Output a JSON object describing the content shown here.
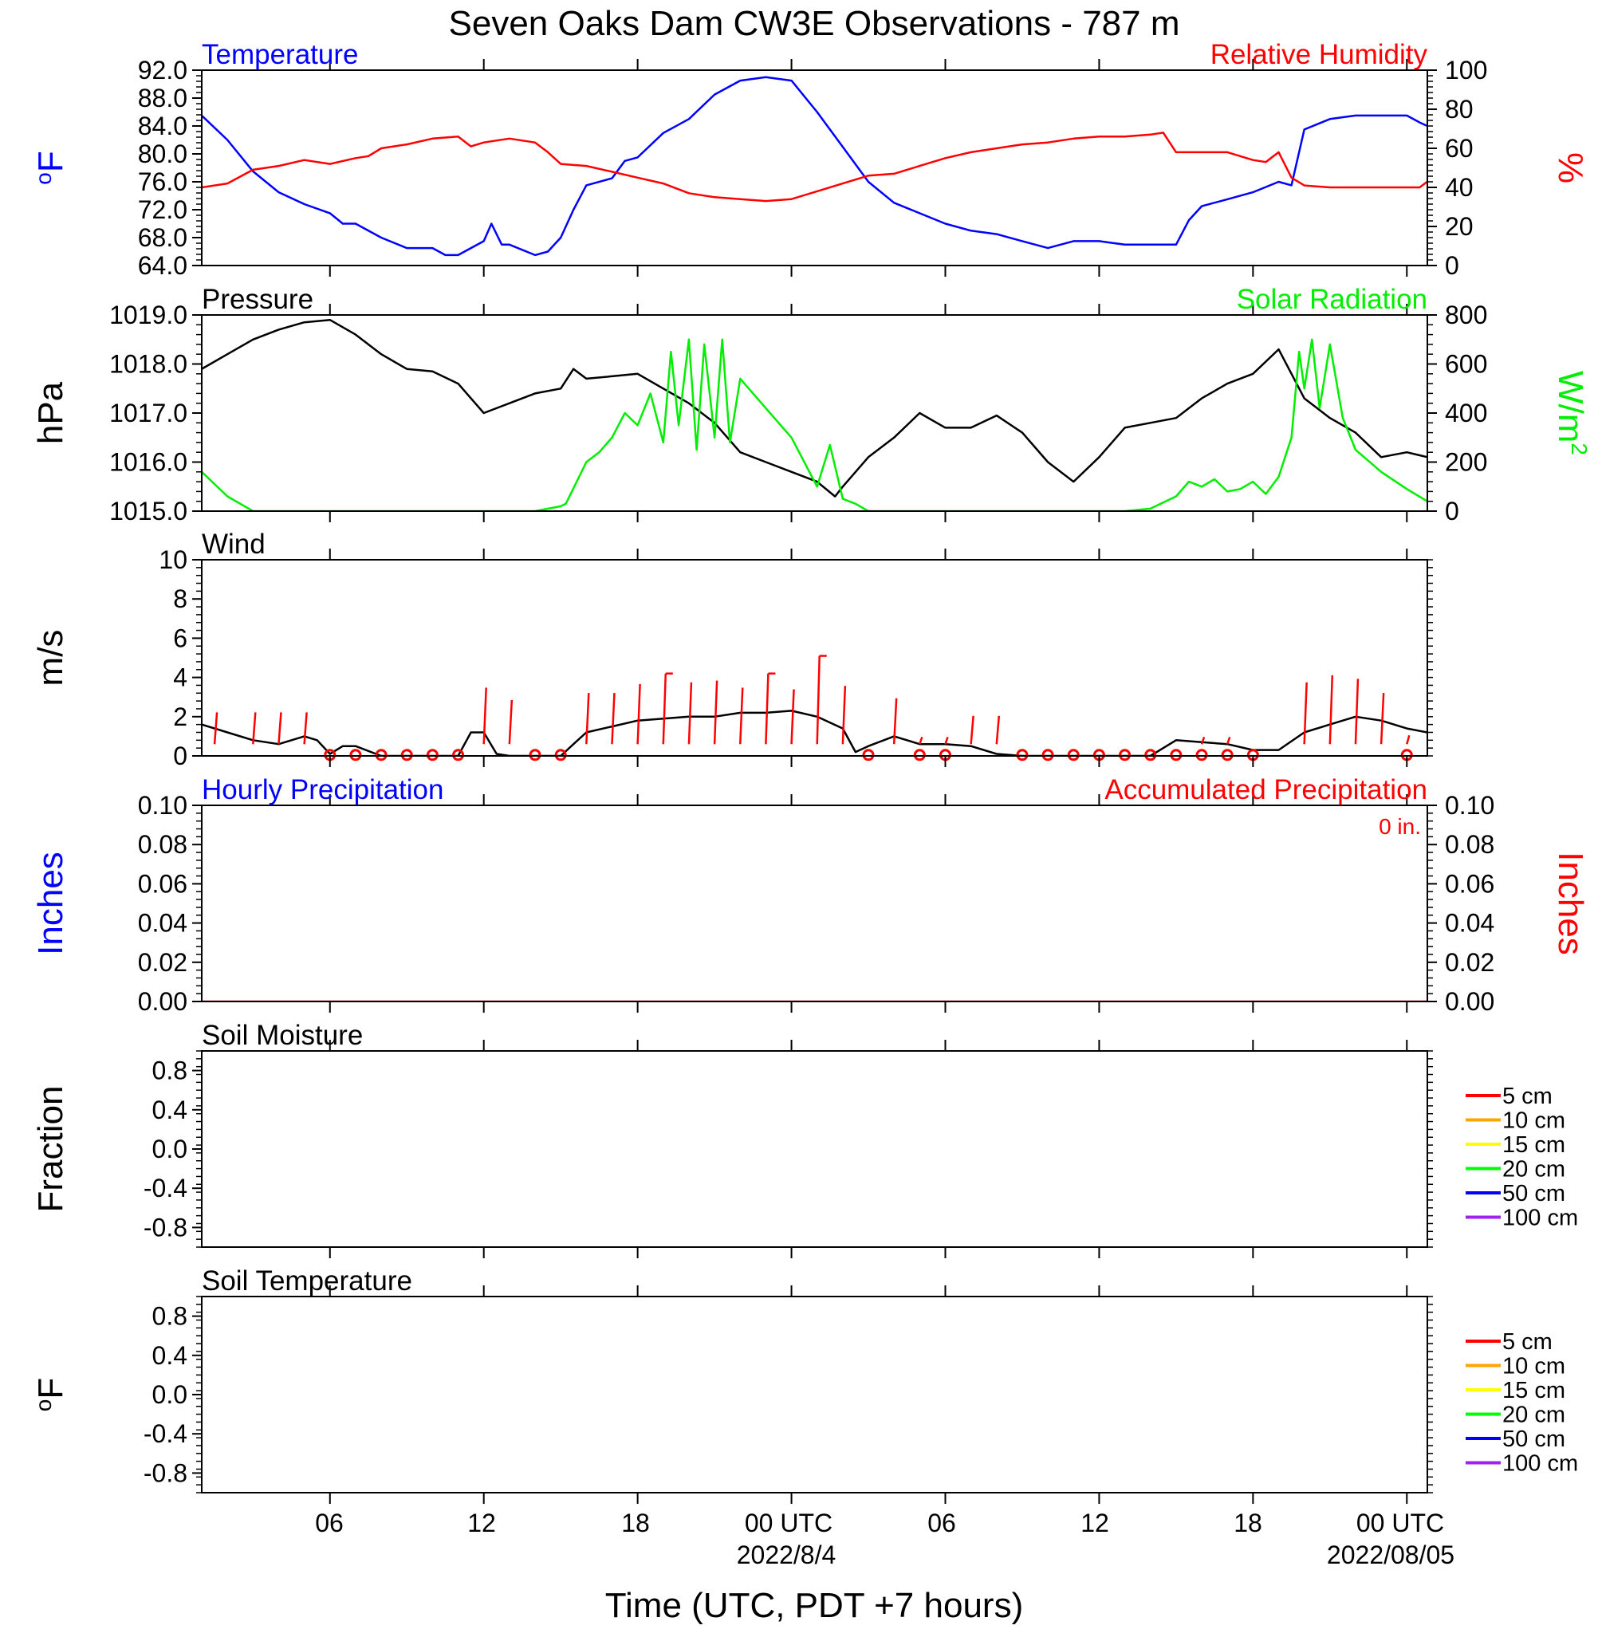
{
  "title": "Seven Oaks Dam CW3E Observations - 787 m",
  "xlabel": "Time (UTC, PDT +7 hours)",
  "x_ticks": [
    "06",
    "12",
    "18",
    "00 UTC",
    "06",
    "12",
    "18",
    "00 UTC"
  ],
  "date_labels": [
    "2022/8/4",
    "2022/08/05"
  ],
  "colors": {
    "blue": "#0000ff",
    "red": "#ff0000",
    "green": "#00ee00",
    "black": "#000000"
  },
  "chart_data": [
    {
      "type": "line",
      "title_left": "Temperature",
      "title_right": "Relative Humidity",
      "ylabel_left": "oF",
      "ylabel_right": "%",
      "ylim_left": [
        64,
        92
      ],
      "ylim_right": [
        0,
        100
      ],
      "yticks_left": [
        "92.0",
        "88.0",
        "84.0",
        "80.0",
        "76.0",
        "72.0",
        "68.0",
        "64.0"
      ],
      "yticks_right": [
        "100",
        "80",
        "60",
        "40",
        "20",
        "0"
      ],
      "xlim_hours": [
        1,
        48.8
      ],
      "series": [
        {
          "name": "Temperature",
          "axis": "left",
          "color": "#0000ff",
          "x": [
            1,
            2,
            3,
            4,
            5,
            6,
            6.5,
            7,
            8,
            9,
            10,
            10.5,
            11,
            11.5,
            12,
            12.3,
            12.7,
            13,
            14,
            14.5,
            15,
            15.5,
            16,
            17,
            17.5,
            18,
            19,
            20,
            21,
            22,
            23,
            24,
            25,
            26,
            27,
            28,
            29,
            30,
            31,
            32,
            33,
            34,
            35,
            35.5,
            36,
            37,
            38,
            39,
            39.5,
            40,
            41,
            42,
            43,
            43.5,
            44,
            45,
            46,
            47,
            48,
            48.5,
            48.8
          ],
          "y": [
            85.5,
            82,
            77.5,
            74.5,
            72.8,
            71.5,
            70,
            70,
            68,
            66.5,
            66.5,
            65.5,
            65.5,
            66.5,
            67.5,
            70,
            67,
            67,
            65.5,
            66,
            68,
            72,
            75.5,
            76.5,
            79,
            79.5,
            83,
            85,
            88.5,
            90.5,
            91,
            90.5,
            86,
            81,
            76,
            73,
            71.5,
            70,
            69,
            68.5,
            67.5,
            66.5,
            67.5,
            67.5,
            67.5,
            67,
            67,
            67,
            70.5,
            72.5,
            73.5,
            74.5,
            76,
            75.5,
            83.5,
            85,
            85.5,
            85.5,
            85.5,
            84.5,
            84
          ]
        },
        {
          "name": "Relative Humidity",
          "axis": "right",
          "color": "#ff0000",
          "x": [
            1,
            2,
            3,
            4,
            5,
            6,
            7,
            7.5,
            8,
            9,
            10,
            11,
            11.5,
            12,
            12.5,
            13,
            14,
            14.5,
            15,
            16,
            17,
            18,
            19,
            20,
            21,
            22,
            23,
            24,
            25,
            26,
            27,
            28,
            29,
            30,
            31,
            32,
            33,
            34,
            35,
            36,
            37,
            38,
            38.5,
            39,
            40,
            41,
            42,
            42.5,
            43,
            43.5,
            44,
            45,
            46,
            47,
            48,
            48.5,
            48.8
          ],
          "y": [
            40,
            42,
            49,
            51,
            54,
            52,
            55,
            56,
            60,
            62,
            65,
            66,
            61,
            63,
            64,
            65,
            63,
            58,
            52,
            51,
            48,
            45,
            42,
            37,
            35,
            34,
            33,
            34,
            38,
            42,
            46,
            47,
            51,
            55,
            58,
            60,
            62,
            63,
            65,
            66,
            66,
            67,
            68,
            58,
            58,
            58,
            54,
            53,
            58,
            45,
            41,
            40,
            40,
            40,
            40,
            40,
            43
          ]
        }
      ]
    },
    {
      "type": "line",
      "title_left": "Pressure",
      "title_right": "Solar Radiation",
      "ylabel_left": "hPa",
      "ylabel_right": "W/m2",
      "ylim_left": [
        1015,
        1019
      ],
      "ylim_right": [
        0,
        800
      ],
      "yticks_left": [
        "1019.0",
        "1018.0",
        "1017.0",
        "1016.0",
        "1015.0"
      ],
      "yticks_right": [
        "800",
        "600",
        "400",
        "200",
        "0"
      ],
      "series": [
        {
          "name": "Pressure",
          "axis": "left",
          "color": "#000000",
          "x": [
            1,
            2,
            3,
            4,
            5,
            6,
            7,
            8,
            9,
            10,
            11,
            12,
            13,
            14,
            15,
            15.5,
            16,
            17,
            18,
            19,
            20,
            21,
            22,
            23,
            24,
            25,
            25.7,
            26,
            27,
            28,
            29,
            30,
            31,
            32,
            33,
            34,
            35,
            36,
            37,
            38,
            39,
            40,
            41,
            42,
            43,
            43.5,
            44,
            45,
            46,
            47,
            48,
            48.8
          ],
          "y": [
            1017.9,
            1018.2,
            1018.5,
            1018.7,
            1018.85,
            1018.9,
            1018.6,
            1018.2,
            1017.9,
            1017.85,
            1017.6,
            1017.0,
            1017.2,
            1017.4,
            1017.5,
            1017.9,
            1017.7,
            1017.75,
            1017.8,
            1017.5,
            1017.2,
            1016.8,
            1016.2,
            1016.0,
            1015.8,
            1015.6,
            1015.3,
            1015.5,
            1016.1,
            1016.5,
            1017.0,
            1016.7,
            1016.7,
            1016.95,
            1016.6,
            1016.0,
            1015.6,
            1016.1,
            1016.7,
            1016.8,
            1016.9,
            1017.3,
            1017.6,
            1017.8,
            1018.3,
            1017.8,
            1017.3,
            1016.9,
            1016.6,
            1016.1,
            1016.2,
            1016.1
          ]
        },
        {
          "name": "Solar Radiation",
          "axis": "right",
          "color": "#00ee00",
          "x": [
            1,
            2,
            3,
            4,
            5,
            6,
            7,
            8,
            9,
            10,
            11,
            12,
            13,
            14,
            15,
            15.2,
            16,
            16.5,
            17,
            17.5,
            18,
            18.5,
            19,
            19.3,
            19.6,
            20,
            20.3,
            20.6,
            21,
            21.3,
            21.6,
            22,
            23,
            24,
            25,
            25.5,
            26,
            26.5,
            27,
            28,
            29,
            30,
            31,
            32,
            33,
            34,
            35,
            36,
            37,
            38,
            39,
            39.5,
            40,
            40.5,
            41,
            41.5,
            42,
            42.5,
            43,
            43.5,
            43.8,
            44,
            44.3,
            44.6,
            45,
            45.5,
            46,
            47,
            48,
            48.8
          ],
          "y": [
            160,
            60,
            0,
            0,
            0,
            0,
            0,
            0,
            0,
            0,
            0,
            0,
            0,
            0,
            20,
            30,
            200,
            240,
            300,
            400,
            350,
            480,
            280,
            650,
            350,
            700,
            250,
            680,
            300,
            700,
            280,
            540,
            420,
            300,
            100,
            270,
            50,
            30,
            0,
            0,
            0,
            0,
            0,
            0,
            0,
            0,
            0,
            0,
            0,
            10,
            60,
            120,
            100,
            130,
            80,
            90,
            120,
            70,
            140,
            300,
            650,
            500,
            700,
            420,
            680,
            380,
            250,
            160,
            90,
            40
          ]
        }
      ]
    },
    {
      "type": "line",
      "title_left": "Wind",
      "ylabel_left": "m/s",
      "ylim_left": [
        0,
        10
      ],
      "yticks_left": [
        "10",
        "8",
        "6",
        "4",
        "2",
        "0"
      ],
      "series": [
        {
          "name": "Wind",
          "axis": "left",
          "color": "#000000",
          "x": [
            1,
            2,
            3,
            4,
            5,
            5.5,
            6,
            6.5,
            7,
            8,
            9,
            10,
            11,
            11.5,
            12,
            12.5,
            13,
            14,
            15,
            15.5,
            16,
            17,
            18,
            19,
            20,
            21,
            22,
            23,
            24,
            25,
            26,
            26.5,
            27,
            28,
            29,
            30,
            31,
            32,
            33,
            34,
            35,
            36,
            37,
            38,
            39,
            40,
            41,
            42,
            43,
            44,
            45,
            46,
            47,
            48,
            48.8
          ],
          "y": [
            1.6,
            1.2,
            0.8,
            0.6,
            1.0,
            0.8,
            0.1,
            0.5,
            0.5,
            0,
            0,
            0,
            0,
            1.2,
            1.2,
            0.1,
            0,
            0,
            0,
            0.6,
            1.2,
            1.5,
            1.8,
            1.9,
            2.0,
            2.0,
            2.2,
            2.2,
            2.3,
            2.0,
            1.4,
            0.2,
            0.5,
            1.0,
            0.6,
            0.6,
            0.5,
            0.1,
            0,
            0,
            0,
            0,
            0,
            0,
            0.8,
            0.7,
            0.6,
            0.3,
            0.3,
            1.2,
            1.6,
            2.0,
            1.8,
            1.4,
            1.2
          ]
        }
      ],
      "barb_hours": [
        1.5,
        3,
        4,
        5,
        6,
        7,
        8,
        9,
        10,
        11,
        12,
        13,
        14,
        15,
        16,
        17,
        18,
        19,
        20,
        21,
        22,
        23,
        24,
        25,
        26,
        27,
        28,
        29,
        30,
        31,
        32,
        33,
        34,
        35,
        36,
        37,
        38,
        39,
        40,
        41,
        42,
        43,
        44,
        45,
        46,
        47,
        48
      ],
      "barb_speeds": [
        1.8,
        1.8,
        1.8,
        1.8,
        0,
        0,
        0,
        0,
        0,
        0,
        3.2,
        2.5,
        0,
        0,
        2.9,
        2.9,
        3.4,
        4.0,
        3.5,
        3.6,
        3.2,
        4.0,
        3.1,
        5.0,
        3.3,
        0,
        2.6,
        0.4,
        0.4,
        1.6,
        1.6,
        0,
        0,
        0,
        0,
        0,
        0,
        0,
        0.4,
        0.4,
        0,
        0,
        3.5,
        3.9,
        3.7,
        2.9,
        0.5
      ],
      "calm_markers_hours": [
        6,
        7,
        8,
        9,
        10,
        11,
        14,
        15,
        27,
        29,
        30,
        33,
        34,
        35,
        36,
        37,
        38,
        39,
        40,
        41,
        42,
        48
      ]
    },
    {
      "type": "line",
      "title_left": "Hourly Precipitation",
      "title_right": "Accumulated Precipitation",
      "annotation": "0 in.",
      "ylabel_left": "Inches",
      "ylabel_right": "Inches",
      "ylim_left": [
        0,
        0.1
      ],
      "ylim_right": [
        0,
        0.1
      ],
      "yticks_left": [
        "0.10",
        "0.08",
        "0.06",
        "0.04",
        "0.02",
        "0.00"
      ],
      "yticks_right": [
        "0.10",
        "0.08",
        "0.06",
        "0.04",
        "0.02",
        "0.00"
      ],
      "series": [
        {
          "name": "Accumulated Precipitation",
          "axis": "right",
          "color": "#ff0000",
          "x": [
            1,
            48.8
          ],
          "y": [
            0,
            0
          ]
        }
      ]
    },
    {
      "type": "line",
      "title_left": "Soil Moisture",
      "ylabel_left": "Fraction",
      "ylim_left": [
        -1,
        1
      ],
      "yticks_left": [
        "0.8",
        "0.4",
        "0.0",
        "-0.4",
        "-0.8"
      ],
      "legend": [
        {
          "name": "5 cm",
          "color": "#ff0000"
        },
        {
          "name": "10 cm",
          "color": "#ffa500"
        },
        {
          "name": "15 cm",
          "color": "#ffff00"
        },
        {
          "name": "20 cm",
          "color": "#00ff00"
        },
        {
          "name": "50 cm",
          "color": "#0000ff"
        },
        {
          "name": "100 cm",
          "color": "#a020f0"
        }
      ],
      "series": []
    },
    {
      "type": "line",
      "title_left": "Soil Temperature",
      "ylabel_left": "oF",
      "ylim_left": [
        -1,
        1
      ],
      "yticks_left": [
        "0.8",
        "0.4",
        "0.0",
        "-0.4",
        "-0.8"
      ],
      "legend": [
        {
          "name": "5 cm",
          "color": "#ff0000"
        },
        {
          "name": "10 cm",
          "color": "#ffa500"
        },
        {
          "name": "15 cm",
          "color": "#ffff00"
        },
        {
          "name": "20 cm",
          "color": "#00ff00"
        },
        {
          "name": "50 cm",
          "color": "#0000ff"
        },
        {
          "name": "100 cm",
          "color": "#a020f0"
        }
      ],
      "series": []
    }
  ]
}
